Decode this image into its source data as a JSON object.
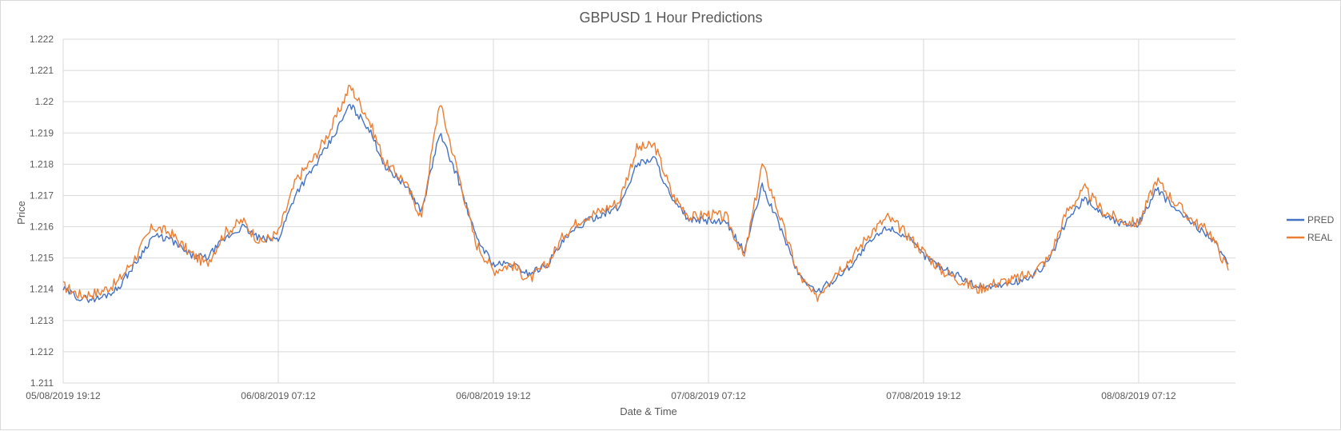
{
  "chart_data": {
    "type": "line",
    "title": "GBPUSD 1 Hour Predictions",
    "xlabel": "Date & Time",
    "ylabel": "Price",
    "ylim": [
      1.211,
      1.222
    ],
    "ytick_labels": [
      "1.211",
      "1.212",
      "1.213",
      "1.214",
      "1.215",
      "1.216",
      "1.217",
      "1.218",
      "1.219",
      "1.22",
      "1.221",
      "1.222"
    ],
    "x_tick_labels": [
      "05/08/2019 19:12",
      "06/08/2019 07:12",
      "06/08/2019 19:12",
      "07/08/2019 07:12",
      "07/08/2019 19:12",
      "08/08/2019 07:12"
    ],
    "x_range": [
      "05/08/2019 19:12",
      "08/08/2019 12:36"
    ],
    "grid": true,
    "legend_position": "right",
    "x_hours": [
      0,
      1,
      2,
      3,
      4,
      5,
      6,
      7,
      8,
      9,
      10,
      11,
      12,
      13,
      14,
      15,
      16,
      17,
      18,
      19,
      20,
      21,
      22,
      23,
      24,
      25,
      26,
      27,
      28,
      29,
      30,
      31,
      32,
      33,
      34,
      35,
      36,
      37,
      38,
      39,
      40,
      41,
      42,
      43,
      44,
      45,
      46,
      47,
      48,
      49,
      50,
      51,
      52,
      53,
      54,
      55,
      56,
      57,
      58,
      59,
      60,
      61,
      62,
      63,
      64,
      65
    ],
    "series": [
      {
        "name": "REAL",
        "color": "#ed7d31",
        "values": [
          1.2141,
          1.2138,
          1.2139,
          1.2142,
          1.215,
          1.216,
          1.2158,
          1.2152,
          1.2148,
          1.2158,
          1.2162,
          1.2155,
          1.2158,
          1.2175,
          1.2182,
          1.2192,
          1.2205,
          1.2195,
          1.218,
          1.2175,
          1.2163,
          1.22,
          1.2178,
          1.2155,
          1.2146,
          1.2148,
          1.2143,
          1.2148,
          1.2158,
          1.2163,
          1.2165,
          1.2168,
          1.2185,
          1.2186,
          1.217,
          1.2163,
          1.2164,
          1.2163,
          1.215,
          1.218,
          1.2163,
          1.2145,
          1.2137,
          1.2145,
          1.215,
          1.2158,
          1.2163,
          1.2158,
          1.2152,
          1.2146,
          1.2143,
          1.214,
          1.2142,
          1.2143,
          1.2145,
          1.215,
          1.2165,
          1.2172,
          1.2165,
          1.2162,
          1.2161,
          1.2175,
          1.2168,
          1.2162,
          1.2158,
          1.2146
        ]
      },
      {
        "name": "PRED",
        "color": "#4472c4",
        "values": [
          1.214,
          1.2137,
          1.2137,
          1.214,
          1.2148,
          1.2157,
          1.2156,
          1.2151,
          1.215,
          1.2156,
          1.216,
          1.2156,
          1.2156,
          1.2171,
          1.2179,
          1.2188,
          1.2199,
          1.2192,
          1.2179,
          1.2174,
          1.2165,
          1.219,
          1.2176,
          1.2157,
          1.2148,
          1.2148,
          1.2145,
          1.2148,
          1.2156,
          1.2161,
          1.2164,
          1.2166,
          1.218,
          1.2182,
          1.2168,
          1.2162,
          1.2162,
          1.2161,
          1.2152,
          1.2173,
          1.216,
          1.2145,
          1.2139,
          1.2143,
          1.2148,
          1.2155,
          1.216,
          1.2157,
          1.2151,
          1.2147,
          1.2144,
          1.2141,
          1.2141,
          1.2142,
          1.2144,
          1.2149,
          1.2162,
          1.2169,
          1.2164,
          1.2161,
          1.2161,
          1.2172,
          1.2166,
          1.2161,
          1.2157,
          1.2148
        ]
      }
    ]
  }
}
